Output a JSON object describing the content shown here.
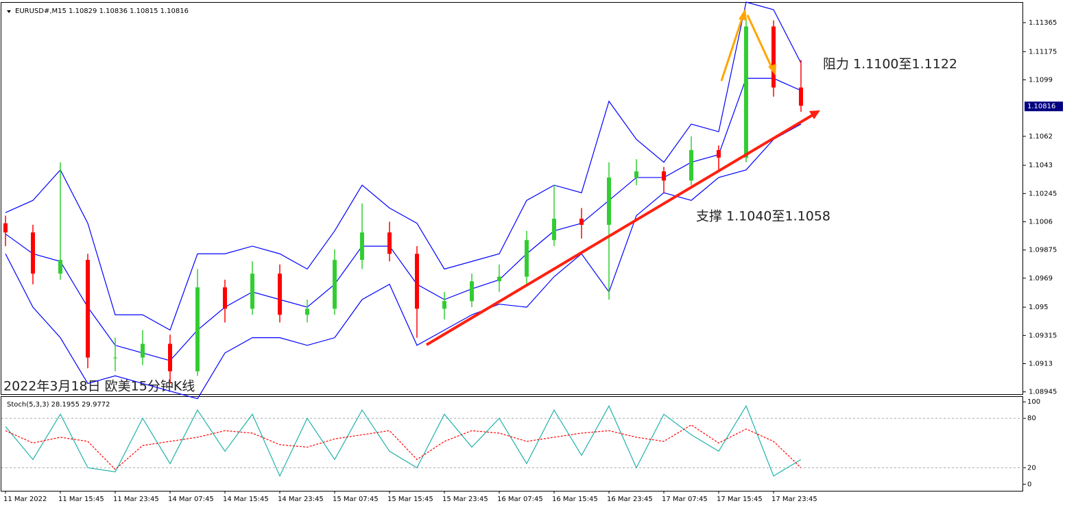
{
  "chart_data": [
    {
      "type": "candlestick",
      "title": "EURUSD#,M15  1.10829 1.10836 1.10815 1.10816",
      "categories": [
        "11 Mar 2022",
        null,
        "11 Mar 15:45",
        null,
        "11 Mar 23:45",
        null,
        "14 Mar 07:45",
        null,
        "14 Mar 15:45",
        null,
        "14 Mar 23:45",
        null,
        "15 Mar 07:45",
        null,
        "15 Mar 15:45",
        null,
        "15 Mar 23:45",
        null,
        "16 Mar 07:45",
        null,
        "16 Mar 15:45",
        null,
        "16 Mar 23:45",
        null,
        "17 Mar 07:45",
        null,
        "17 Mar 15:45",
        null,
        "17 Mar 23:45",
        null
      ],
      "open": [
        1.1005,
        1.0999,
        1.0972,
        1.0981,
        1.0917,
        1.0917,
        1.0926,
        1.0908,
        1.0963,
        1.0949,
        1.0972,
        1.0945,
        1.0949,
        1.0981,
        1.0999,
        1.0985,
        1.0949,
        1.0954,
        1.0967,
        1.097,
        1.0994,
        1.1008,
        1.1004,
        1.1035,
        1.1039,
        1.1033,
        1.1053,
        1.1048,
        1.1134,
        1.1094
      ],
      "high": [
        1.101,
        1.1004,
        1.1045,
        1.0985,
        1.093,
        1.0935,
        1.0932,
        1.0975,
        1.0968,
        1.098,
        1.0978,
        1.0955,
        1.0988,
        1.1018,
        1.1006,
        1.099,
        1.096,
        1.0972,
        1.0978,
        1.1,
        1.103,
        1.1015,
        1.1045,
        1.1047,
        1.1042,
        1.1062,
        1.1056,
        1.114,
        1.1138,
        1.1112
      ],
      "low": [
        1.099,
        1.0965,
        1.0968,
        1.091,
        1.0908,
        1.0912,
        1.09,
        1.0905,
        1.094,
        1.0945,
        1.094,
        1.094,
        1.0945,
        1.0975,
        1.098,
        1.093,
        1.0942,
        1.095,
        1.096,
        1.0965,
        1.099,
        1.0995,
        1.0955,
        1.103,
        1.1025,
        1.103,
        1.104,
        1.1045,
        1.1088,
        1.1078
      ],
      "close": [
        1.0999,
        1.0972,
        1.0981,
        1.0917,
        1.0917,
        1.0926,
        1.0908,
        1.0963,
        1.0949,
        1.0972,
        1.0945,
        1.0949,
        1.0981,
        1.0999,
        1.0985,
        1.0949,
        1.0954,
        1.0967,
        1.097,
        1.0994,
        1.1008,
        1.1004,
        1.1035,
        1.1039,
        1.1033,
        1.1053,
        1.1048,
        1.1134,
        1.1094,
        1.1082
      ],
      "up_color": "#32cd32",
      "down_color": "#ff0000",
      "bands": {
        "color": "#0000ff",
        "upper": [
          1.1012,
          1.102,
          1.104,
          1.1005,
          1.0945,
          1.0945,
          1.0935,
          1.0985,
          1.0985,
          1.099,
          1.0985,
          1.0975,
          1.1,
          1.103,
          1.1015,
          1.1005,
          1.0975,
          1.098,
          1.0985,
          1.102,
          1.103,
          1.1025,
          1.1085,
          1.106,
          1.1045,
          1.107,
          1.1065,
          1.115,
          1.1145,
          1.111
        ],
        "middle": [
          1.0998,
          1.0985,
          1.098,
          1.095,
          1.0925,
          1.092,
          1.0915,
          1.0935,
          1.095,
          1.096,
          1.0955,
          1.095,
          1.0965,
          1.099,
          1.099,
          1.0965,
          1.0955,
          1.0962,
          1.0968,
          1.0985,
          1.1,
          1.1005,
          1.102,
          1.1035,
          1.1035,
          1.1045,
          1.105,
          1.11,
          1.11,
          1.1092
        ],
        "lower": [
          1.0985,
          1.095,
          1.093,
          1.09,
          1.0905,
          1.09,
          1.0895,
          1.089,
          1.092,
          1.093,
          1.093,
          1.0925,
          1.093,
          1.0955,
          1.0965,
          1.0925,
          1.0935,
          1.0945,
          1.0952,
          1.095,
          1.097,
          1.0985,
          1.096,
          1.101,
          1.1025,
          1.102,
          1.1035,
          1.104,
          1.106,
          1.107
        ]
      },
      "ylim": [
        1.0893,
        1.115
      ],
      "yticks": [
        1.11365,
        1.11175,
        1.1099,
        1.1062,
        1.1043,
        1.10245,
        1.1006,
        1.09875,
        1.0969,
        1.095,
        1.09315,
        1.0913,
        1.08945
      ],
      "current_price": 1.10816,
      "annotations": [
        "阻力 1.1100至1.1122",
        "支撑 1.1040至1.1058",
        "2022年3月18日 欧美15分钟K线"
      ]
    },
    {
      "type": "line",
      "title": "Stoch(5,3,3) 28.1955 29.9772",
      "series": [
        {
          "color": "#20b2aa",
          "values": [
            70,
            30,
            85,
            20,
            15,
            80,
            25,
            90,
            40,
            85,
            10,
            80,
            30,
            90,
            40,
            20,
            85,
            45,
            80,
            25,
            90,
            35,
            95,
            20,
            85,
            60,
            40,
            95,
            10,
            30
          ]
        },
        {
          "color": "#ff0000",
          "dashed": true,
          "values": [
            65,
            50,
            57,
            52,
            18,
            47,
            52,
            57,
            65,
            62,
            48,
            45,
            55,
            60,
            65,
            30,
            52,
            65,
            62,
            52,
            57,
            62,
            65,
            57,
            52,
            72,
            50,
            67,
            52,
            20
          ]
        }
      ],
      "ylim": [
        -8,
        106
      ],
      "yticks": [
        0,
        20,
        80,
        100
      ],
      "levels": [
        20,
        80
      ]
    }
  ]
}
